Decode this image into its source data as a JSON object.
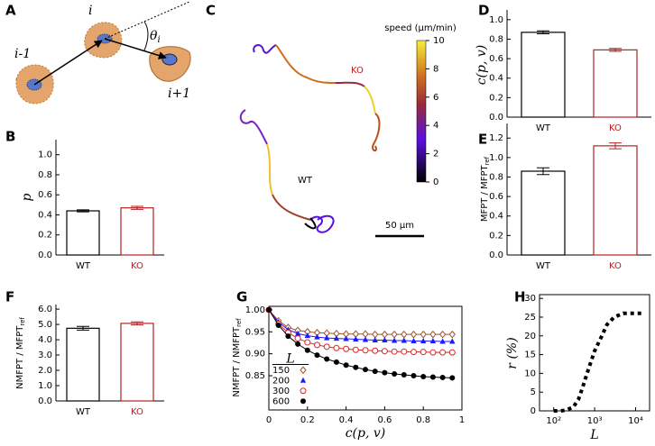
{
  "diagram": {
    "panel": "A",
    "labels": [
      "i-1",
      "i",
      "i+1"
    ],
    "theta": "θ",
    "theta_sub": "i"
  },
  "chart_data": [
    {
      "type": "bar",
      "panel": "B",
      "ylabel": "p",
      "categories": [
        "WT",
        "KO"
      ],
      "colors": [
        "#000000",
        "#b22222"
      ],
      "values": [
        0.44,
        0.47
      ],
      "errors": [
        0.01,
        0.015
      ],
      "ylim": [
        0,
        1.15
      ],
      "yticks": [
        {
          "value": 0,
          "label": "0.0"
        },
        0.2,
        0.4,
        0.6,
        0.8,
        {
          "value": 1,
          "label": "1.0"
        }
      ]
    },
    {
      "type": "trajectory",
      "panel": "C",
      "annotations": [
        "KO",
        "WT"
      ],
      "annotation_colors": [
        "#b22222",
        "#000000"
      ],
      "scalebar_label": "50 μm",
      "colorbar": {
        "label": "speed (μm/min)",
        "lim": [
          0,
          10
        ],
        "ticks": [
          0,
          2,
          4,
          6,
          8,
          10
        ]
      }
    },
    {
      "type": "bar",
      "panel": "D",
      "ylabel": "c(p, v)",
      "categories": [
        "WT",
        "KO"
      ],
      "colors": [
        "#000000",
        "#b22222"
      ],
      "values": [
        0.87,
        0.69
      ],
      "errors": [
        0.015,
        0.015
      ],
      "ylim": [
        0,
        1.1
      ],
      "yticks": [
        {
          "value": 0,
          "label": "0.0"
        },
        0.2,
        0.4,
        0.6,
        0.8,
        {
          "value": 1,
          "label": "1.0"
        }
      ]
    },
    {
      "type": "bar",
      "panel": "E",
      "ylabel": "MFPT / MFPT",
      "ylabel_sub": "ref",
      "categories": [
        "WT",
        "KO"
      ],
      "colors": [
        "#000000",
        "#b22222"
      ],
      "values": [
        0.86,
        1.12
      ],
      "errors": [
        0.035,
        0.03
      ],
      "ylim": [
        0,
        1.35
      ],
      "yticks": [
        {
          "value": 0,
          "label": "0.0"
        },
        0.2,
        0.4,
        0.6,
        0.8,
        {
          "value": 1,
          "label": "1.0"
        },
        1.2
      ]
    },
    {
      "type": "bar",
      "panel": "F",
      "ylabel": "NMFPT / MFPT",
      "ylabel_sub": "ref",
      "categories": [
        "WT",
        "KO"
      ],
      "colors": [
        "#000000",
        "#b22222"
      ],
      "values": [
        4.75,
        5.07
      ],
      "errors": [
        0.12,
        0.1
      ],
      "ylim": [
        0,
        6.3
      ],
      "yticks": [
        {
          "value": 0,
          "label": "0.0"
        },
        {
          "value": 1,
          "label": "1.0"
        },
        {
          "value": 2,
          "label": "2.0"
        },
        {
          "value": 3,
          "label": "3.0"
        },
        {
          "value": 4,
          "label": "4.0"
        },
        {
          "value": 5,
          "label": "5.0"
        },
        {
          "value": 6,
          "label": "6.0"
        }
      ]
    },
    {
      "type": "line",
      "panel": "G",
      "xlabel": "c(p, v)",
      "ylabel": "NMFPT / NMFPT",
      "ylabel_sub": "ref",
      "legend": "lower left",
      "legend_title": "L",
      "x": [
        0,
        0.05,
        0.1,
        0.15,
        0.2,
        0.25,
        0.3,
        0.35,
        0.4,
        0.45,
        0.5,
        0.55,
        0.6,
        0.65,
        0.7,
        0.75,
        0.8,
        0.85,
        0.9,
        0.95
      ],
      "series": [
        {
          "name": "150",
          "color": "#a0522d",
          "marker": "diamond-open",
          "values": [
            1.0,
            0.975,
            0.96,
            0.953,
            0.95,
            0.948,
            0.947,
            0.946,
            0.945,
            0.945,
            0.945,
            0.944,
            0.944,
            0.944,
            0.944,
            0.944,
            0.944,
            0.944,
            0.944,
            0.944
          ]
        },
        {
          "name": "200",
          "color": "#1a1aff",
          "marker": "triangle",
          "values": [
            1.0,
            0.972,
            0.955,
            0.946,
            0.941,
            0.938,
            0.936,
            0.935,
            0.934,
            0.933,
            0.932,
            0.931,
            0.931,
            0.93,
            0.93,
            0.929,
            0.929,
            0.929,
            0.928,
            0.928
          ]
        },
        {
          "name": "300",
          "color": "#d62728",
          "marker": "circle-open",
          "values": [
            1.0,
            0.968,
            0.948,
            0.935,
            0.926,
            0.92,
            0.916,
            0.913,
            0.911,
            0.909,
            0.908,
            0.907,
            0.906,
            0.905,
            0.905,
            0.904,
            0.904,
            0.903,
            0.903,
            0.903
          ]
        },
        {
          "name": "600",
          "color": "#000000",
          "marker": "circle",
          "values": [
            1.0,
            0.965,
            0.94,
            0.922,
            0.908,
            0.897,
            0.888,
            0.881,
            0.874,
            0.869,
            0.864,
            0.86,
            0.857,
            0.854,
            0.852,
            0.85,
            0.848,
            0.847,
            0.846,
            0.845
          ]
        }
      ],
      "xlim": [
        0,
        1
      ],
      "xticks": [
        0,
        0.2,
        0.4,
        0.6,
        0.8,
        1
      ],
      "ylim": [
        0.772,
        1.008
      ],
      "yticks": [
        0.85,
        {
          "value": 0.9,
          "label": "0.90"
        },
        0.95,
        {
          "value": 1,
          "label": "1.00"
        }
      ]
    },
    {
      "type": "line",
      "panel": "H",
      "xlabel": "L",
      "ylabel": "r (%)",
      "log_x": true,
      "linestyle": "dotted",
      "color": "#000000",
      "x": [
        100,
        150,
        200,
        300,
        400,
        500,
        700,
        1000,
        1500,
        2000,
        3000,
        5000,
        7000,
        10000,
        15000
      ],
      "values": [
        0,
        0,
        0.2,
        1,
        3,
        6,
        11,
        16,
        20,
        23,
        25,
        26,
        26,
        26,
        26
      ],
      "xlim": [
        45,
        22000
      ],
      "xticks": [
        {
          "value": 100,
          "label": "10²"
        },
        {
          "value": 1000,
          "label": "10³"
        },
        {
          "value": 10000,
          "label": "10⁴"
        }
      ],
      "ylim": [
        0,
        31
      ],
      "yticks": [
        0,
        5,
        10,
        15,
        20,
        25,
        30
      ]
    }
  ]
}
